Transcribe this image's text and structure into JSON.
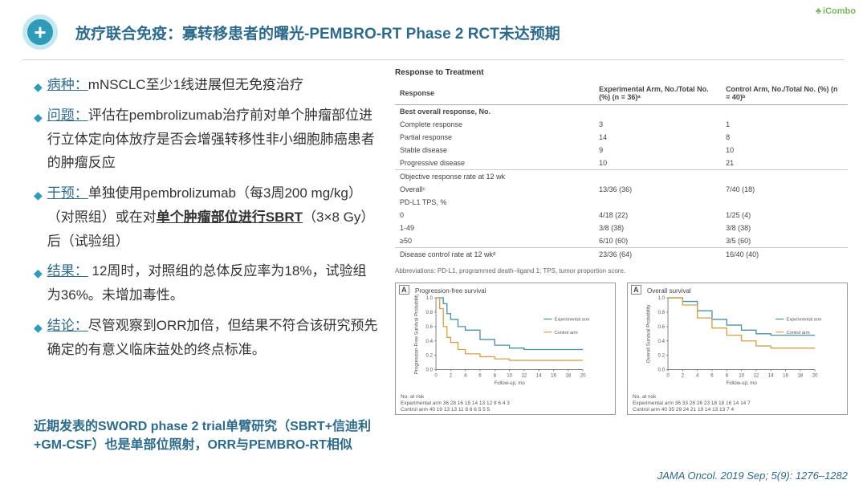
{
  "header": {
    "title": "放疗联合免疫：寡转移患者的曙光-PEMBRO-RT Phase 2 RCT未达预期",
    "logo": "iCombo"
  },
  "bullets": [
    {
      "label": "病种：",
      "text": "mNSCLC至少1线进展但无免疫治疗"
    },
    {
      "label": "问题：",
      "text": "评估在pembrolizumab治疗前对单个肿瘤部位进行立体定向体放疗是否会增强转移性非小细胞肺癌患者的肿瘤反应"
    },
    {
      "label": "干预：",
      "prefix": "单独使用pembrolizumab（每3周200 mg/kg）（对照组）或在对",
      "bold_uline": "单个肿瘤部位进行SBRT",
      "suffix": "（3×8 Gy）后（试验组）"
    },
    {
      "label": "结果：",
      "text": " 12周时，对照组的总体反应率为18%，试验组为36%。未增加毒性。"
    },
    {
      "label": "结论：",
      "text": "尽管观察到ORR加倍，但结果不符合该研究预先确定的有意义临床益处的终点标准。"
    }
  ],
  "footnote_l1": "近期发表的SWORD phase 2 trial单臂研究（SBRT+信迪利",
  "footnote_l2": "+GM-CSF）也是单部位照射，ORR与PEMBRO-RT相似",
  "table": {
    "title": "Response to Treatment",
    "headResp": "Response",
    "headExp": "Experimental Arm, No./Total No. (%) (n = 36)ᵃ",
    "headCtrl": "Control Arm, No./Total No. (%) (n = 40)ᵇ",
    "rows": [
      {
        "r": "Best overall response, No.",
        "e": "",
        "c": "",
        "cls": "row-top bold"
      },
      {
        "r": "Complete response",
        "e": "3",
        "c": "1"
      },
      {
        "r": "Partial response",
        "e": "14",
        "c": "8"
      },
      {
        "r": "Stable disease",
        "e": "9",
        "c": "10"
      },
      {
        "r": "Progressive disease",
        "e": "10",
        "c": "21"
      },
      {
        "r": "Objective response rate at 12 wk",
        "e": "",
        "c": "",
        "cls": "row-top"
      },
      {
        "r": "Overallᶜ",
        "e": "13/36 (36)",
        "c": "7/40 (18)"
      },
      {
        "r": "PD-L1 TPS, %",
        "e": "",
        "c": ""
      },
      {
        "r": "0",
        "e": "4/18 (22)",
        "c": "1/25 (4)"
      },
      {
        "r": "1-49",
        "e": "3/8 (38)",
        "c": "3/8 (38)"
      },
      {
        "r": "≥50",
        "e": "6/10 (60)",
        "c": "3/5 (60)"
      },
      {
        "r": "Disease control rate at 12 wkᵈ",
        "e": "23/36 (64)",
        "c": "16/40 (40)",
        "cls": "row-top"
      }
    ],
    "abbrev": "Abbreviations: PD-L1, programmed death–ligand 1; TPS, tumor proportion score."
  },
  "charts": {
    "a": {
      "letter": "A",
      "title": "Progression-free survival",
      "ylabel": "Progression-Free Survival Probability",
      "xlabel": "Follow-up, mo",
      "ylim": [
        0,
        1.0
      ],
      "xlim": [
        0,
        20
      ],
      "yticks": [
        0,
        0.2,
        0.4,
        0.6,
        0.8,
        1.0
      ],
      "xticks": [
        0,
        2,
        4,
        6,
        8,
        10,
        12,
        14,
        16,
        18,
        20
      ],
      "exp_color": "#4a8fa8",
      "ctrl_color": "#d4a04a",
      "exp": [
        [
          0,
          1.0
        ],
        [
          1,
          0.92
        ],
        [
          1.5,
          0.78
        ],
        [
          2,
          0.7
        ],
        [
          3,
          0.6
        ],
        [
          4,
          0.55
        ],
        [
          6,
          0.42
        ],
        [
          8,
          0.34
        ],
        [
          10,
          0.3
        ],
        [
          12,
          0.28
        ],
        [
          15,
          0.28
        ],
        [
          20,
          0.28
        ]
      ],
      "ctrl": [
        [
          0,
          1.0
        ],
        [
          0.5,
          0.85
        ],
        [
          1,
          0.6
        ],
        [
          1.5,
          0.45
        ],
        [
          2,
          0.38
        ],
        [
          3,
          0.28
        ],
        [
          4,
          0.22
        ],
        [
          6,
          0.18
        ],
        [
          8,
          0.15
        ],
        [
          10,
          0.13
        ],
        [
          14,
          0.13
        ],
        [
          20,
          0.13
        ]
      ],
      "legend_exp": "Experimental arm",
      "legend_ctrl": "Control arm",
      "risk_hdr": "No. at risk",
      "risk_exp": "Experimental arm  36  28  16  15  14  13  12   8   6   4   3",
      "risk_ctrl": "Control arm        40  19  13  13  11   8   8   6   5   5   5"
    },
    "b": {
      "letter": "A",
      "title": "Overall survival",
      "ylabel": "Overall Survival Probability",
      "xlabel": "Follow-up, mo",
      "ylim": [
        0,
        1.0
      ],
      "xlim": [
        0,
        20
      ],
      "yticks": [
        0,
        0.2,
        0.4,
        0.6,
        0.8,
        1.0
      ],
      "xticks": [
        0,
        2,
        4,
        6,
        8,
        10,
        12,
        14,
        16,
        18,
        20
      ],
      "exp_color": "#4a8fa8",
      "ctrl_color": "#d4a04a",
      "exp": [
        [
          0,
          1.0
        ],
        [
          2,
          0.95
        ],
        [
          4,
          0.82
        ],
        [
          6,
          0.7
        ],
        [
          8,
          0.62
        ],
        [
          10,
          0.55
        ],
        [
          12,
          0.5
        ],
        [
          14,
          0.48
        ],
        [
          18,
          0.48
        ],
        [
          20,
          0.48
        ]
      ],
      "ctrl": [
        [
          0,
          1.0
        ],
        [
          2,
          0.9
        ],
        [
          4,
          0.72
        ],
        [
          6,
          0.58
        ],
        [
          8,
          0.48
        ],
        [
          10,
          0.4
        ],
        [
          12,
          0.33
        ],
        [
          14,
          0.3
        ],
        [
          18,
          0.3
        ],
        [
          20,
          0.3
        ]
      ],
      "legend_exp": "Experimental arm",
      "legend_ctrl": "Control arm",
      "risk_hdr": "No. at risk",
      "risk_exp": "Experimental arm  36  33  28  26  23  18  18  16  14  14  7",
      "risk_ctrl": "Control arm        40  35  29  24  21  19  14  13  13   7  4"
    }
  },
  "citation": "JAMA Oncol. 2019 Sep; 5(9): 1276–1282"
}
